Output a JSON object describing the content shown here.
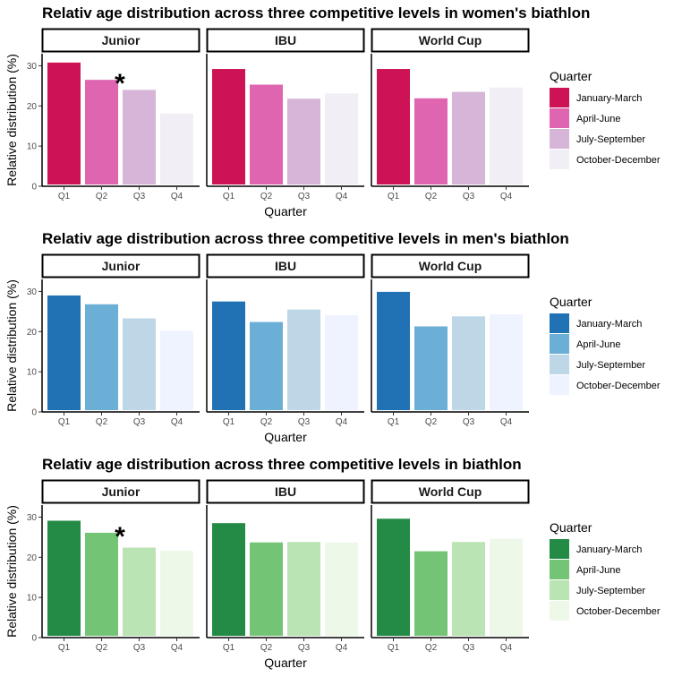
{
  "chart_data": [
    {
      "type": "bar",
      "title": "Relativ age distribution across three competitive levels in women's biathlon",
      "xlabel": "Quarter",
      "ylabel": "Relative distribution (%)",
      "ylim": [
        0,
        33
      ],
      "yticks": [
        0,
        10,
        20,
        30
      ],
      "categories": [
        "Q1",
        "Q2",
        "Q3",
        "Q4"
      ],
      "legend": {
        "title": "Quarter",
        "placement": "right",
        "entries": [
          "January-March",
          "April-June",
          "July-September",
          "October-December"
        ]
      },
      "colors": [
        "#ce1256",
        "#df65b0",
        "#d7b5d8",
        "#f1eef6"
      ],
      "panels": [
        {
          "name": "Junior",
          "values": [
            30.8,
            26.5,
            24.0,
            18.1
          ],
          "significance": {
            "category": "Q2",
            "label": "*"
          }
        },
        {
          "name": "IBU",
          "values": [
            29.2,
            25.3,
            21.8,
            23.1
          ]
        },
        {
          "name": "World Cup",
          "values": [
            29.2,
            21.9,
            23.5,
            24.6
          ]
        }
      ]
    },
    {
      "type": "bar",
      "title": "Relativ age distribution across three competitive levels in men's biathlon",
      "xlabel": "Quarter",
      "ylabel": "Relative distribution (%)",
      "ylim": [
        0,
        33
      ],
      "yticks": [
        0,
        10,
        20,
        30
      ],
      "categories": [
        "Q1",
        "Q2",
        "Q3",
        "Q4"
      ],
      "legend": {
        "title": "Quarter",
        "placement": "right",
        "entries": [
          "January-March",
          "April-June",
          "July-September",
          "October-December"
        ]
      },
      "colors": [
        "#2171b5",
        "#6baed6",
        "#bdd7e7",
        "#eff3ff"
      ],
      "panels": [
        {
          "name": "Junior",
          "values": [
            29.0,
            26.8,
            23.3,
            20.2
          ]
        },
        {
          "name": "IBU",
          "values": [
            27.5,
            22.4,
            25.5,
            24.1
          ]
        },
        {
          "name": "World Cup",
          "values": [
            29.9,
            21.3,
            23.8,
            24.3
          ]
        }
      ]
    },
    {
      "type": "bar",
      "title": "Relativ age distribution across three competitive levels in biathlon",
      "xlabel": "Quarter",
      "ylabel": "Relative distribution (%)",
      "ylim": [
        0,
        33
      ],
      "yticks": [
        0,
        10,
        20,
        30
      ],
      "categories": [
        "Q1",
        "Q2",
        "Q3",
        "Q4"
      ],
      "legend": {
        "title": "Quarter",
        "placement": "right",
        "entries": [
          "January-March",
          "April-June",
          "July-September",
          "October-December"
        ]
      },
      "colors": [
        "#238b45",
        "#74c476",
        "#bae4b3",
        "#edf8e9"
      ],
      "panels": [
        {
          "name": "Junior",
          "values": [
            29.1,
            26.1,
            22.4,
            21.6
          ],
          "significance": {
            "category": "Q2",
            "label": "*"
          }
        },
        {
          "name": "IBU",
          "values": [
            28.5,
            23.7,
            23.8,
            23.7
          ]
        },
        {
          "name": "World Cup",
          "values": [
            29.6,
            21.5,
            23.8,
            24.6
          ]
        }
      ]
    }
  ]
}
